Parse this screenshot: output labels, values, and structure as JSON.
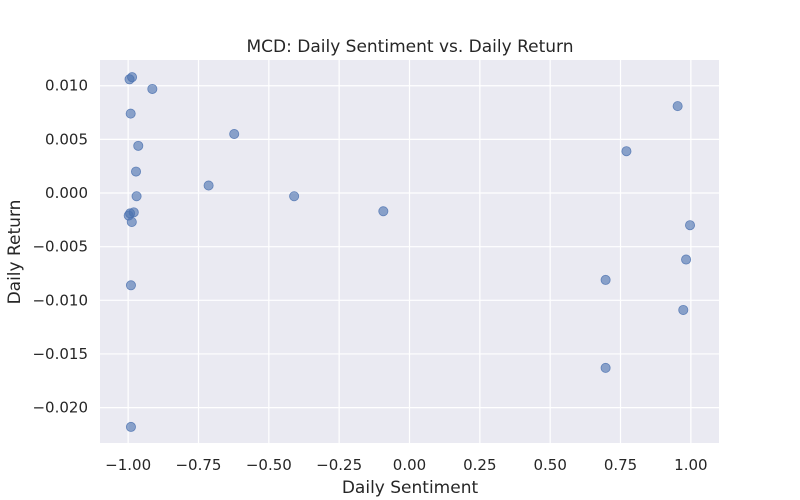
{
  "chart_data": {
    "type": "scatter",
    "title": "MCD: Daily Sentiment vs. Daily Return",
    "xlabel": "Daily Sentiment",
    "ylabel": "Daily Return",
    "xlim": [
      -1.1,
      1.1
    ],
    "ylim": [
      -0.0233,
      0.0124
    ],
    "xticks": [
      -1.0,
      -0.75,
      -0.5,
      -0.25,
      0.0,
      0.25,
      0.5,
      0.75,
      1.0
    ],
    "xtick_labels": [
      "−1.00",
      "−0.75",
      "−0.50",
      "−0.25",
      "0.00",
      "0.25",
      "0.50",
      "0.75",
      "1.00"
    ],
    "yticks": [
      0.01,
      0.005,
      0.0,
      -0.005,
      -0.01,
      -0.015,
      -0.02
    ],
    "ytick_labels": [
      "0.010",
      "0.005",
      "0.000",
      "−0.005",
      "−0.010",
      "−0.015",
      "−0.020"
    ],
    "grid": true,
    "background": "#eaeaf2",
    "grid_color": "#ffffff",
    "marker_color": "#4c72b0",
    "points": [
      {
        "x": -0.995,
        "y": 0.0106
      },
      {
        "x": -0.986,
        "y": 0.0108
      },
      {
        "x": -0.914,
        "y": 0.0097
      },
      {
        "x": -0.991,
        "y": 0.0074
      },
      {
        "x": -0.964,
        "y": 0.0044
      },
      {
        "x": -0.972,
        "y": 0.002
      },
      {
        "x": -0.97,
        "y": -0.0003
      },
      {
        "x": -0.998,
        "y": -0.0021
      },
      {
        "x": -0.993,
        "y": -0.0019
      },
      {
        "x": -0.98,
        "y": -0.0018
      },
      {
        "x": -0.987,
        "y": -0.0027
      },
      {
        "x": -0.99,
        "y": -0.0086
      },
      {
        "x": -0.99,
        "y": -0.0218
      },
      {
        "x": -0.714,
        "y": 0.0007
      },
      {
        "x": -0.623,
        "y": 0.0055
      },
      {
        "x": -0.41,
        "y": -0.0003
      },
      {
        "x": -0.093,
        "y": -0.0017
      },
      {
        "x": 0.697,
        "y": -0.0081
      },
      {
        "x": 0.697,
        "y": -0.0163
      },
      {
        "x": 0.771,
        "y": 0.0039
      },
      {
        "x": 0.953,
        "y": 0.0081
      },
      {
        "x": 0.973,
        "y": -0.0109
      },
      {
        "x": 0.983,
        "y": -0.0062
      },
      {
        "x": 0.997,
        "y": -0.003
      }
    ]
  }
}
